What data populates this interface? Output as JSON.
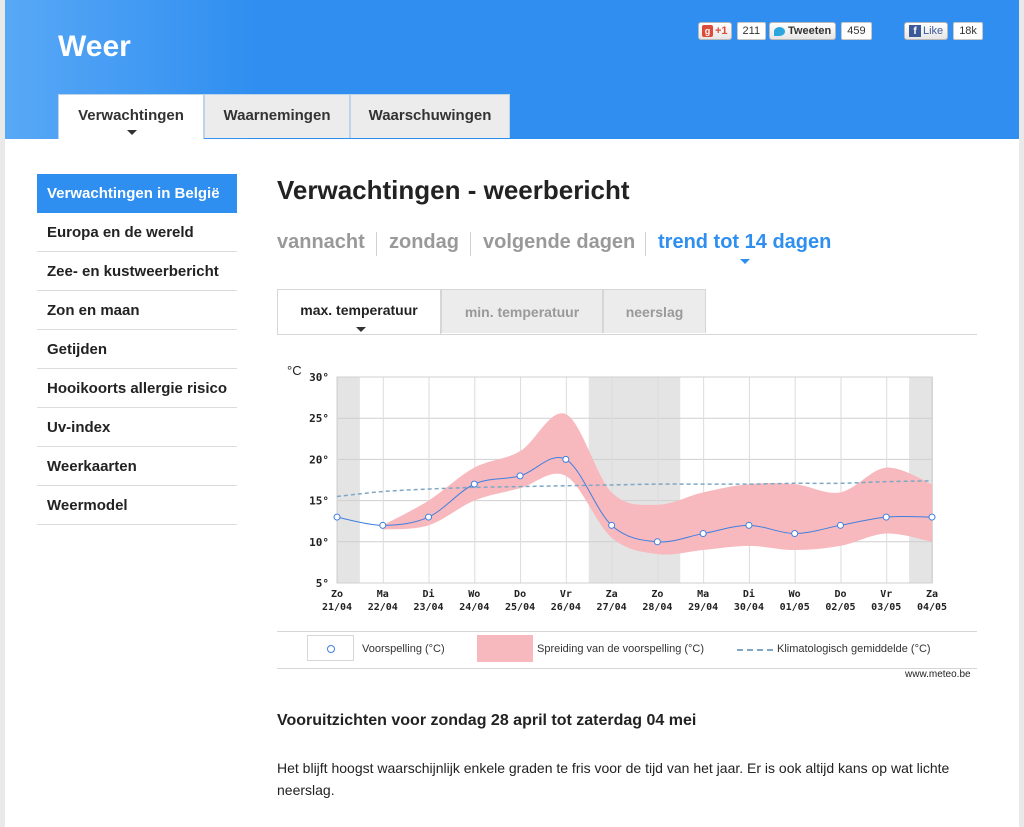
{
  "app_title": "Weer",
  "main_tabs": [
    {
      "label": "Verwachtingen",
      "active": true
    },
    {
      "label": "Waarnemingen",
      "active": false
    },
    {
      "label": "Waarschuwingen",
      "active": false
    }
  ],
  "social": {
    "gplus_label": "+1",
    "gplus_count": "211",
    "tweet_label": "Tweeten",
    "tweet_count": "459",
    "like_label": "Like",
    "like_count": "18k"
  },
  "sidebar": {
    "items": [
      {
        "label": "Verwachtingen in België",
        "active": true
      },
      {
        "label": "Europa en de wereld"
      },
      {
        "label": "Zee- en kustweerbericht"
      },
      {
        "label": "Zon en maan"
      },
      {
        "label": "Getijden"
      },
      {
        "label": "Hooikoorts allergie risico"
      },
      {
        "label": "Uv-index"
      },
      {
        "label": "Weerkaarten"
      },
      {
        "label": "Weermodel"
      }
    ]
  },
  "page_title": "Verwachtingen - weerbericht",
  "subnav": [
    {
      "label": "vannacht"
    },
    {
      "label": "zondag"
    },
    {
      "label": "volgende dagen"
    },
    {
      "label": "trend tot 14 dagen",
      "active": true
    }
  ],
  "chart_tabs": [
    {
      "label": "max. temperatuur",
      "active": true
    },
    {
      "label": "min. temperatuur"
    },
    {
      "label": "neerslag"
    }
  ],
  "colors": {
    "accent": "#2f8ff0",
    "spread": "#f7b9bd",
    "forecast_line": "#3f7fe0",
    "climate_line": "#7fa7c5",
    "weekend_shade": "#e4e4e4"
  },
  "chart_data": {
    "type": "line",
    "unit_label": "°C",
    "ylim": [
      5,
      30
    ],
    "y_ticks": [
      "30°",
      "25°",
      "20°",
      "15°",
      "10°",
      "5°"
    ],
    "y_tick_values": [
      30,
      25,
      20,
      15,
      10,
      5
    ],
    "categories_day": [
      "Zo",
      "Ma",
      "Di",
      "Wo",
      "Do",
      "Vr",
      "Za",
      "Zo",
      "Ma",
      "Di",
      "Wo",
      "Do",
      "Vr",
      "Za"
    ],
    "categories_date": [
      "21/04",
      "22/04",
      "23/04",
      "24/04",
      "25/04",
      "26/04",
      "27/04",
      "28/04",
      "29/04",
      "30/04",
      "01/05",
      "02/05",
      "03/05",
      "04/05"
    ],
    "weekend_shading": [
      0,
      6,
      7,
      13
    ],
    "grid": true,
    "series": [
      {
        "name": "Voorspelling (°C)",
        "kind": "line-markers",
        "values": [
          13,
          12,
          13,
          17,
          18,
          20,
          12,
          10,
          11,
          12,
          11,
          12,
          13,
          13
        ]
      },
      {
        "name": "Spreiding van de voorspelling (°C)",
        "kind": "band",
        "upper": [
          null,
          12,
          15,
          19,
          21,
          25.5,
          16,
          14.5,
          16,
          17,
          17,
          16,
          19,
          17
        ],
        "lower": [
          null,
          11.5,
          12,
          15,
          16.5,
          18,
          10.5,
          8.5,
          9,
          9.5,
          9,
          9.5,
          11,
          10
        ]
      },
      {
        "name": "Klimatologisch gemiddelde (°C)",
        "kind": "dashed",
        "values": [
          15.5,
          16.1,
          16.4,
          16.6,
          16.7,
          16.8,
          16.9,
          17.0,
          17.0,
          17.0,
          17.1,
          17.1,
          17.3,
          17.4
        ]
      }
    ]
  },
  "legend": {
    "forecast": "Voorspelling (°C)",
    "spread": "Spreiding van de voorspelling (°C)",
    "climate": "Klimatologisch gemiddelde (°C)"
  },
  "source": "www.meteo.be",
  "outlook": {
    "title": "Vooruitzichten voor zondag 28 april tot zaterdag 04 mei",
    "text": "Het blijft hoogst waarschijnlijk enkele graden te fris voor de tijd van het jaar. Er is ook altijd kans op wat lichte neerslag."
  }
}
